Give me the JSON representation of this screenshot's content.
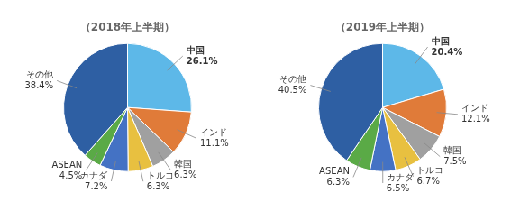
{
  "chart_data": [
    {
      "type": "pie",
      "title": "（2018年上半期）",
      "categories": [
        "中国",
        "インド",
        "韓国",
        "トルコ",
        "カナダ",
        "ASEAN",
        "その他"
      ],
      "values": [
        26.1,
        11.1,
        6.3,
        6.3,
        7.2,
        4.5,
        38.4
      ],
      "value_labels": [
        "26.1%",
        "11.1%",
        "6.3%",
        "6.3%",
        "7.2%",
        "4.5%",
        "38.4%"
      ],
      "colors": [
        "#5db8e8",
        "#e07b39",
        "#a0a0a0",
        "#e8c040",
        "#4472c4",
        "#5aaa46",
        "#2e5fa3"
      ],
      "data_labels": true
    },
    {
      "type": "pie",
      "title": "（2019年上半期）",
      "categories": [
        "中国",
        "インド",
        "韓国",
        "トルコ",
        "カナダ",
        "ASEAN",
        "その他"
      ],
      "values": [
        20.4,
        12.1,
        7.5,
        6.7,
        6.5,
        6.3,
        40.5
      ],
      "value_labels": [
        "20.4%",
        "12.1%",
        "7.5%",
        "6.7%",
        "6.5%",
        "6.3%",
        "40.5%"
      ],
      "colors": [
        "#5db8e8",
        "#e07b39",
        "#a0a0a0",
        "#e8c040",
        "#4472c4",
        "#5aaa46",
        "#2e5fa3"
      ],
      "data_labels": true
    }
  ]
}
